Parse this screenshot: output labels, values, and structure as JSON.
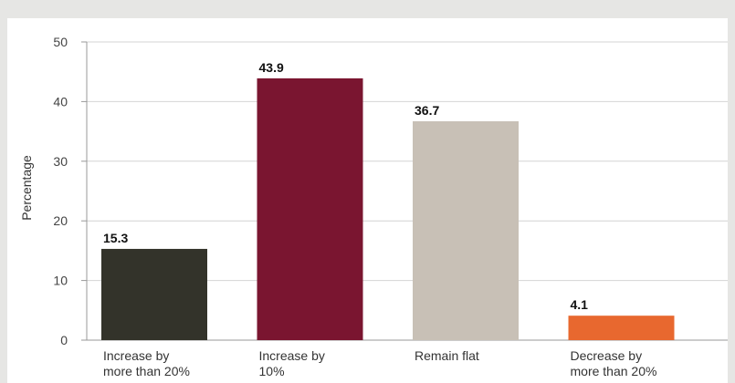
{
  "chart_data": {
    "type": "bar",
    "categories": [
      [
        "Increase by",
        "more than 20%"
      ],
      [
        "Increase by",
        "10%"
      ],
      [
        "Remain flat"
      ],
      [
        "Decrease by",
        "more than 20%"
      ]
    ],
    "values": [
      15.3,
      43.9,
      36.7,
      4.1
    ],
    "value_labels": [
      "15.3",
      "43.9",
      "36.7",
      "4.1"
    ],
    "colors": [
      "#33332a",
      "#7a1530",
      "#c8c0b6",
      "#e8682f"
    ],
    "ylabel": "Percentage",
    "yticks": [
      "0",
      "10",
      "20",
      "30",
      "40",
      "50"
    ],
    "ylim": [
      0,
      50
    ],
    "grid": true,
    "legend": "none"
  }
}
